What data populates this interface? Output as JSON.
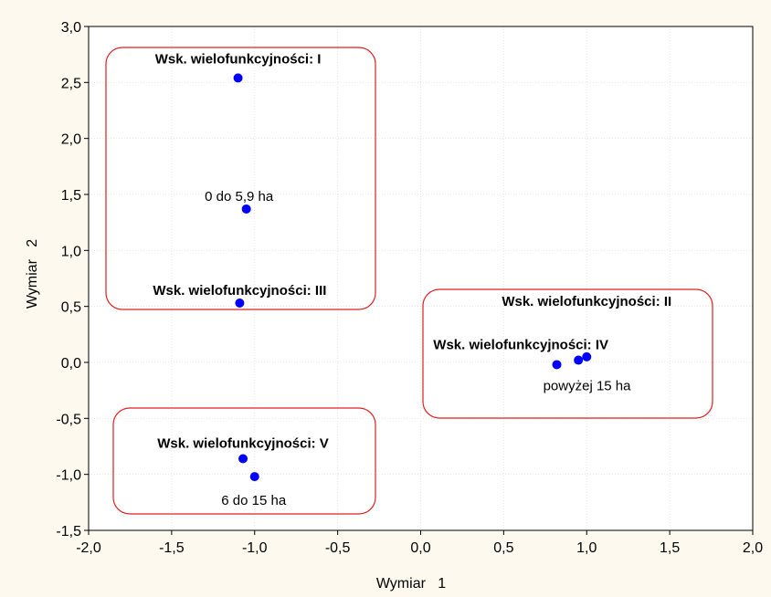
{
  "chart_data": {
    "type": "scatter",
    "title": "",
    "xlabel": "Wymiar   1",
    "ylabel": "Wymiar   2",
    "xlim": [
      -2.0,
      2.0
    ],
    "ylim": [
      -1.5,
      3.0
    ],
    "xticks": [
      "-2,0",
      "-1,5",
      "-1,0",
      "-0,5",
      "0,0",
      "0,5",
      "1,0",
      "1,5",
      "2,0"
    ],
    "yticks": [
      "3,0",
      "2,5",
      "2,0",
      "1,5",
      "1,0",
      "0,5",
      "0,0",
      "-0,5",
      "-1,0",
      "-1,5"
    ],
    "grid": true,
    "point_color": "#0000ff",
    "group_box_color": "#e02020",
    "points": [
      {
        "x": -1.1,
        "y": 2.54,
        "label": "Wsk. wielofunkcyjności: I",
        "bold": true
      },
      {
        "x": -1.05,
        "y": 1.37,
        "label": "0 do 5,9 ha",
        "bold": false
      },
      {
        "x": -1.09,
        "y": 0.53,
        "label": "Wsk. wielofunkcyjności: III",
        "bold": true
      },
      {
        "x": 1.0,
        "y": 0.05,
        "label": "Wsk. wielofunkcyjności: II",
        "bold": true
      },
      {
        "x": 0.95,
        "y": 0.02,
        "label": "Wsk. wielofunkcyjności: IV",
        "bold": true
      },
      {
        "x": 0.82,
        "y": -0.02,
        "label": "powyżej 15 ha",
        "bold": false
      },
      {
        "x": -1.07,
        "y": -0.86,
        "label": "Wsk. wielofunkcyjności: V",
        "bold": true
      },
      {
        "x": -1.0,
        "y": -1.02,
        "label": "6 do 15 ha",
        "bold": false
      }
    ]
  }
}
